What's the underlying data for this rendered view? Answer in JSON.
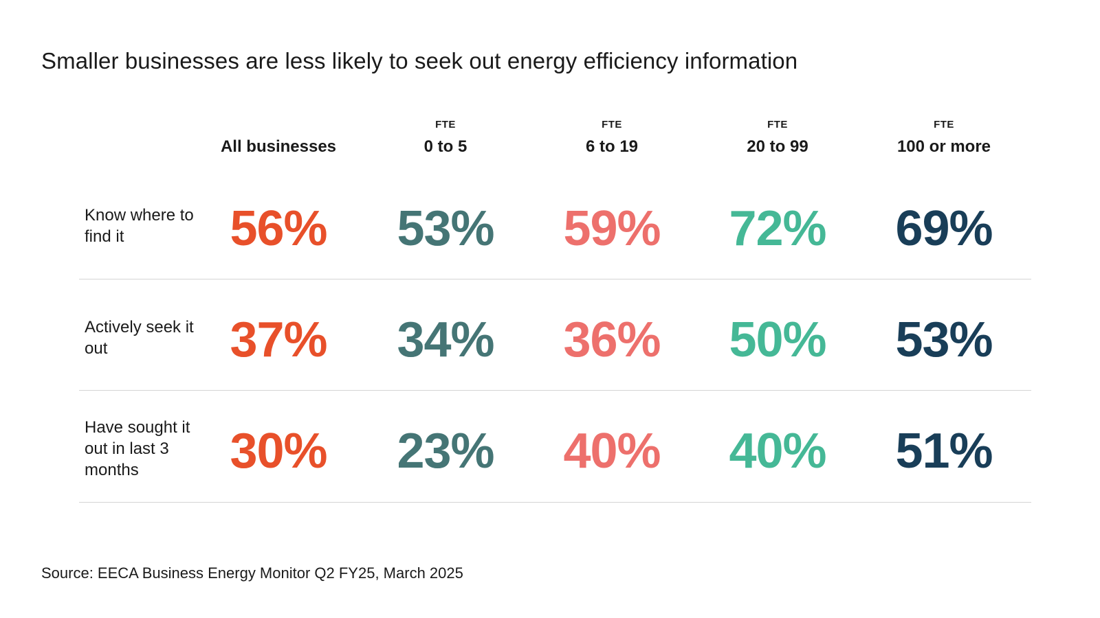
{
  "title": "Smaller businesses are less likely to seek out energy efficiency information",
  "source": "Source: EECA Business Energy Monitor Q2 FY25, March 2025",
  "chart_data": {
    "type": "table",
    "title": "Smaller businesses are less likely to seek out energy efficiency information",
    "columns": [
      {
        "sub": "",
        "label": "All businesses",
        "color": "#e8502a"
      },
      {
        "sub": "FTE",
        "label": "0 to 5",
        "color": "#457575"
      },
      {
        "sub": "FTE",
        "label": "6 to 19",
        "color": "#ed706c"
      },
      {
        "sub": "FTE",
        "label": "20 to 99",
        "color": "#45b896"
      },
      {
        "sub": "FTE",
        "label": "100 or more",
        "color": "#193e58"
      }
    ],
    "rows": [
      {
        "label": "Know where to find it",
        "values": [
          "56%",
          "53%",
          "59%",
          "72%",
          "69%"
        ]
      },
      {
        "label": "Actively seek it out",
        "values": [
          "37%",
          "34%",
          "36%",
          "50%",
          "53%"
        ]
      },
      {
        "label": "Have sought it out in last 3 months",
        "values": [
          "30%",
          "23%",
          "40%",
          "40%",
          "51%"
        ]
      }
    ]
  }
}
